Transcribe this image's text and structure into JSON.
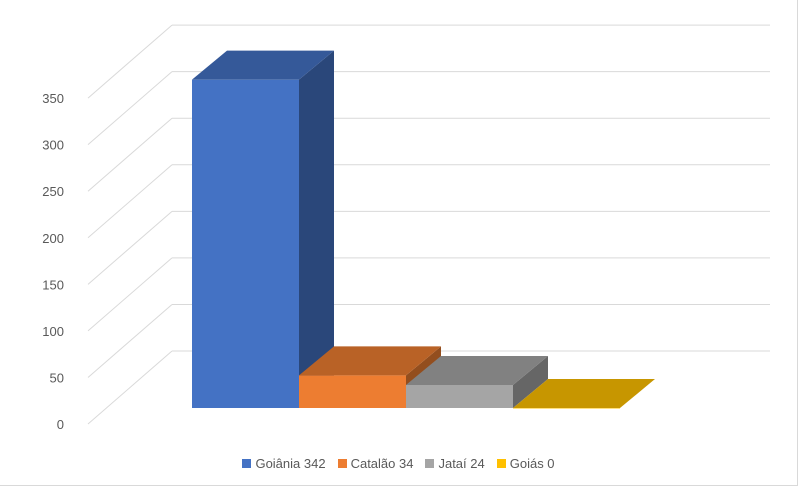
{
  "chart_data": {
    "type": "bar",
    "subtype": "3d-column",
    "categories": [
      "Goiânia 342",
      "Catalão 34",
      "Jataí 24",
      "Goiás 0"
    ],
    "series": [
      {
        "values": [
          342,
          34,
          24,
          0
        ]
      }
    ],
    "colors": [
      "#4472c4",
      "#ed7d31",
      "#a5a5a5",
      "#ffc000"
    ],
    "ylim": [
      0,
      350
    ],
    "yticks": [
      "0",
      "50",
      "100",
      "150",
      "200",
      "250",
      "300",
      "350"
    ],
    "grid": true,
    "legend": {
      "position": "bottom",
      "entries": [
        "Goiânia 342",
        "Catalão 34",
        "Jataí 24",
        "Goiás 0"
      ]
    }
  }
}
